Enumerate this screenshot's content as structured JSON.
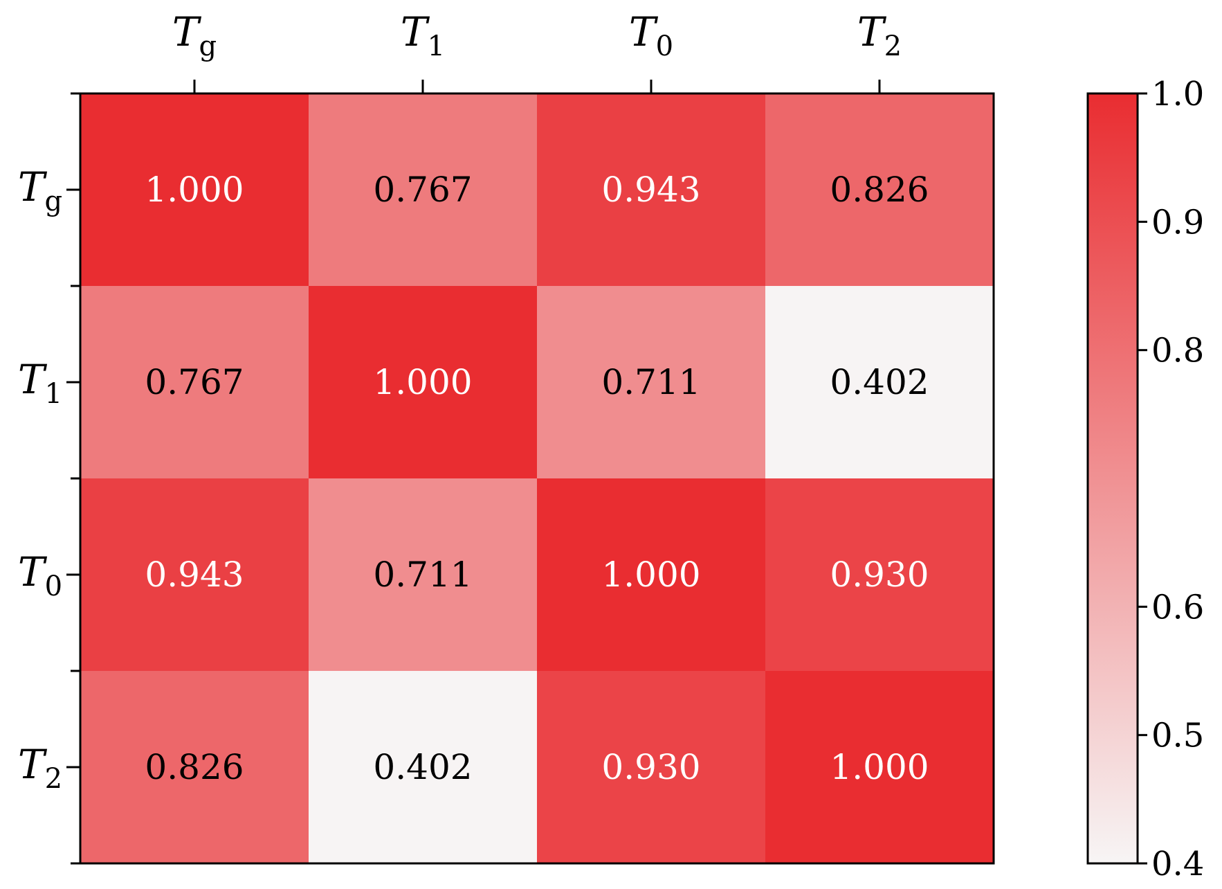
{
  "chart_data": {
    "type": "heatmap",
    "x_labels": [
      {
        "base": "T",
        "sub": "g"
      },
      {
        "base": "T",
        "sub": "1"
      },
      {
        "base": "T",
        "sub": "0"
      },
      {
        "base": "T",
        "sub": "2"
      }
    ],
    "y_labels": [
      {
        "base": "T",
        "sub": "g"
      },
      {
        "base": "T",
        "sub": "1"
      },
      {
        "base": "T",
        "sub": "0"
      },
      {
        "base": "T",
        "sub": "2"
      }
    ],
    "values": [
      [
        1.0,
        0.767,
        0.943,
        0.826
      ],
      [
        0.767,
        1.0,
        0.711,
        0.402
      ],
      [
        0.943,
        0.711,
        1.0,
        0.93
      ],
      [
        0.826,
        0.402,
        0.93,
        1.0
      ]
    ],
    "value_format_decimals": 3,
    "colorbar": {
      "min": 0.4,
      "max": 1.0,
      "ticks": [
        "0.4",
        "0.5",
        "0.6",
        "0.8",
        "0.9",
        "1.0"
      ],
      "tick_values": [
        0.4,
        0.5,
        0.6,
        0.8,
        0.9,
        1.0
      ],
      "color_low": "#f7f5f5",
      "color_high": "#e92d31"
    },
    "x_axis_position": "top",
    "grid": false
  }
}
